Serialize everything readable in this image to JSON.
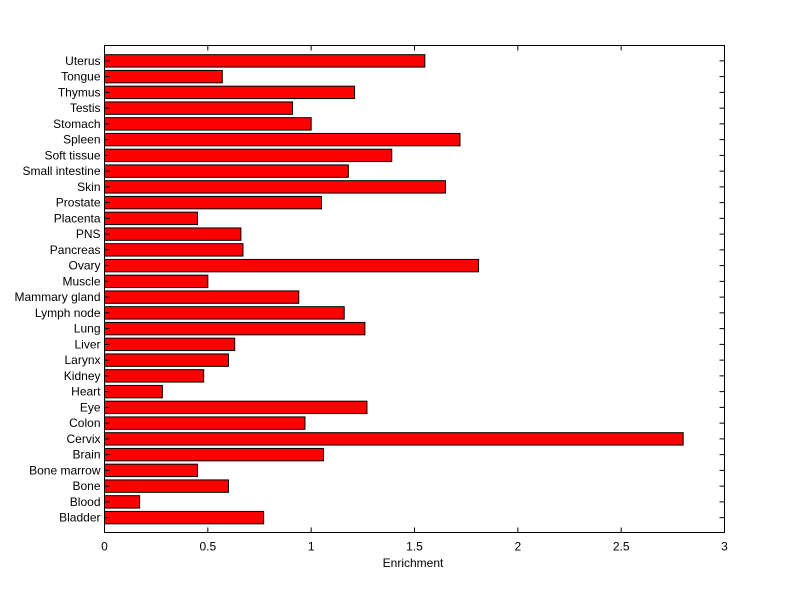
{
  "chart_data": {
    "type": "bar",
    "orientation": "horizontal",
    "categories": [
      "Bladder",
      "Blood",
      "Bone",
      "Bone marrow",
      "Brain",
      "Cervix",
      "Colon",
      "Eye",
      "Heart",
      "Kidney",
      "Larynx",
      "Liver",
      "Lung",
      "Lymph node",
      "Mammary gland",
      "Muscle",
      "Ovary",
      "Pancreas",
      "PNS",
      "Placenta",
      "Prostate",
      "Skin",
      "Small intestine",
      "Soft tissue",
      "Spleen",
      "Stomach",
      "Testis",
      "Thymus",
      "Tongue",
      "Uterus"
    ],
    "values": [
      0.77,
      0.17,
      0.6,
      0.45,
      1.06,
      2.8,
      0.97,
      1.27,
      0.28,
      0.48,
      0.6,
      0.63,
      1.26,
      1.16,
      0.94,
      0.5,
      1.81,
      0.67,
      0.66,
      0.45,
      1.05,
      1.65,
      1.18,
      1.39,
      1.72,
      1.0,
      0.91,
      1.21,
      0.57,
      1.55
    ],
    "xlabel": "Enrichment",
    "ylabel": "",
    "xlim": [
      0,
      3
    ],
    "xticks": [
      0,
      0.5,
      1,
      1.5,
      2,
      2.5,
      3
    ],
    "xtick_labels": [
      "0",
      "0.5",
      "1",
      "1.5",
      "2",
      "2.5",
      "3"
    ],
    "grid": false,
    "bar_color": "#ff0000",
    "edge_color": "#000000"
  }
}
